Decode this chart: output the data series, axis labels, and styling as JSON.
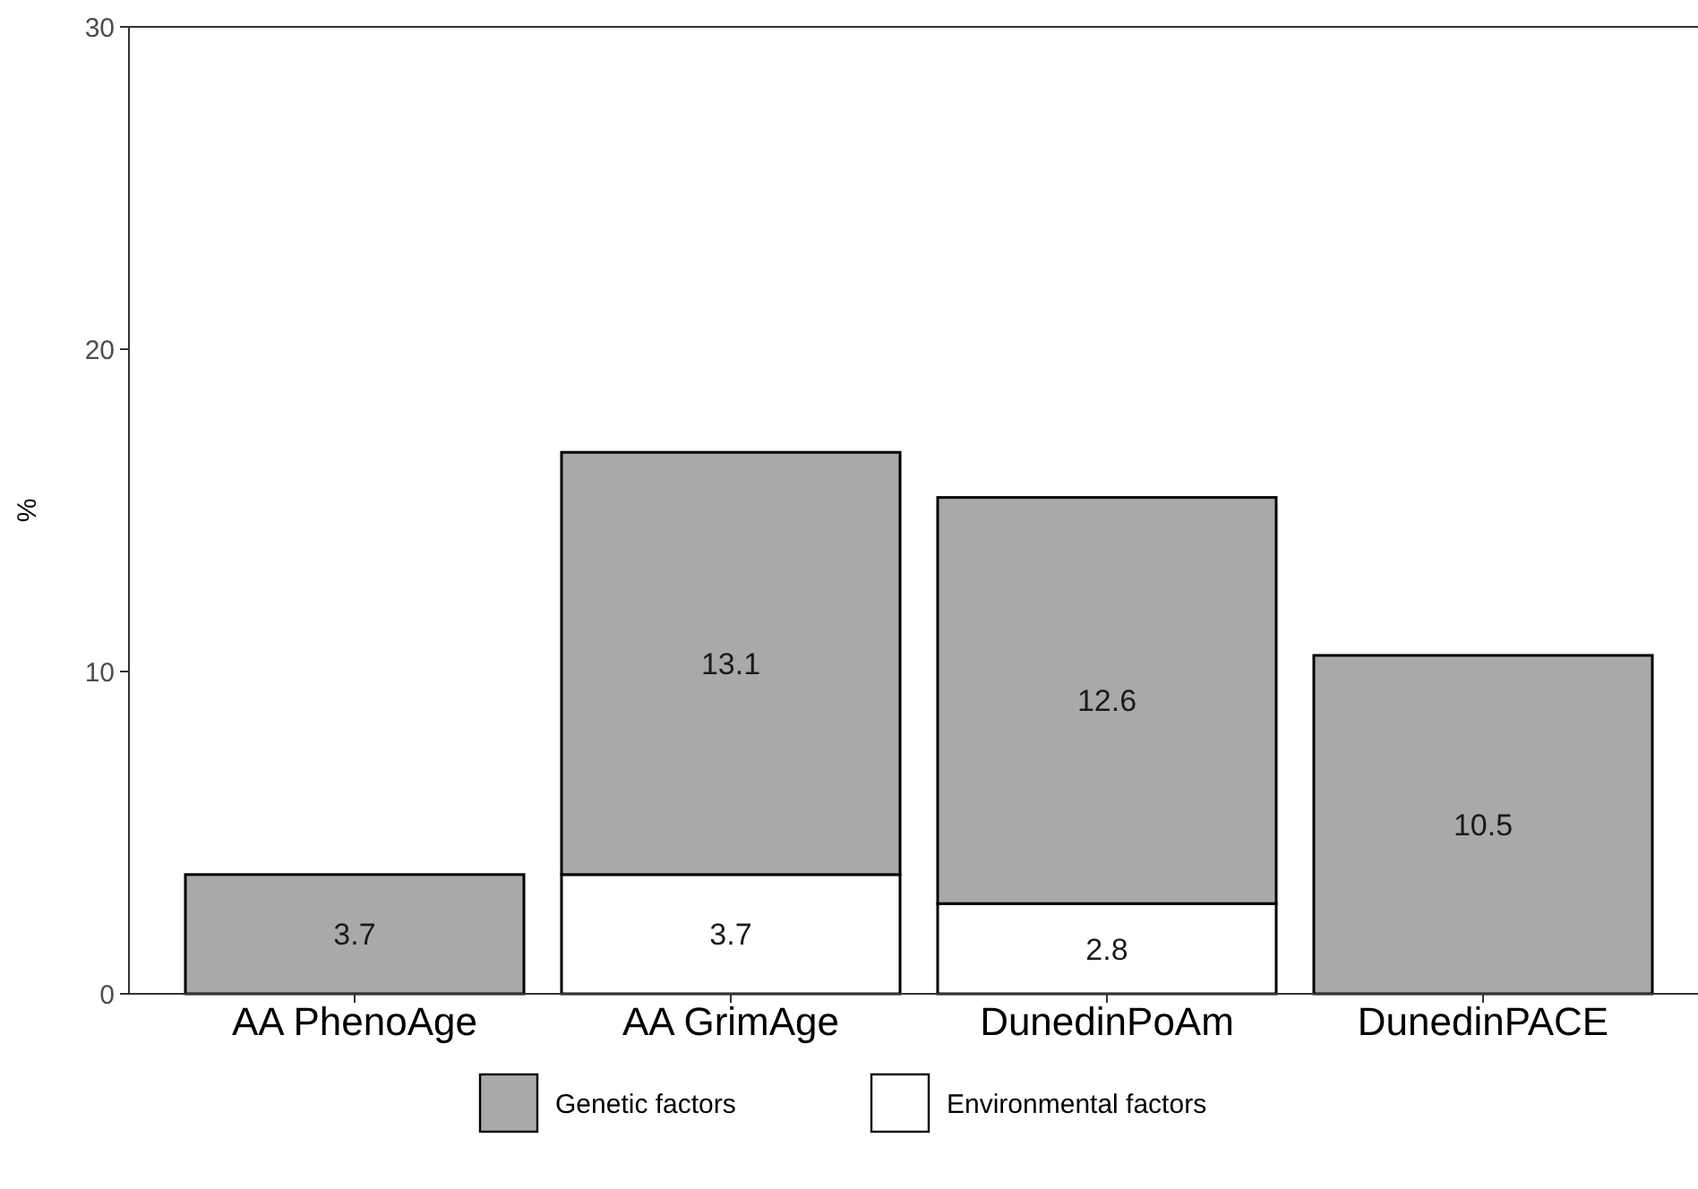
{
  "chart_data": {
    "type": "bar",
    "ylabel": "%",
    "categories": [
      "AA PhenoAge",
      "AA GrimAge",
      "DunedinPoAm",
      "DunedinPACE"
    ],
    "series": [
      {
        "name": "Environmental factors",
        "color": "#ffffff",
        "values": [
          null,
          3.7,
          2.8,
          null
        ]
      },
      {
        "name": "Genetic factors",
        "color": "#a9a9a9",
        "values": [
          3.7,
          13.1,
          12.6,
          10.5
        ]
      }
    ],
    "stacked": true,
    "data_labels": true,
    "ylim": [
      0,
      30
    ],
    "yticks": [
      0,
      10,
      20,
      30
    ],
    "grid": false,
    "legend": "bottom"
  }
}
